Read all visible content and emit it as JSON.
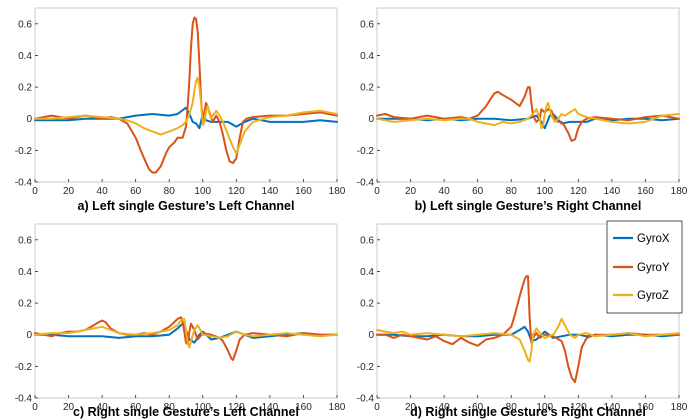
{
  "colors": {
    "GyroX": "#0072BD",
    "GyroY": "#D95319",
    "GyroZ": "#EDB120",
    "axis": "#262626",
    "box": "#bfbfbf"
  },
  "legend": {
    "entries": [
      "GyroX",
      "GyroY",
      "GyroZ"
    ],
    "placement": "right of panel d, top"
  },
  "chart_data": [
    {
      "type": "line",
      "title": "a) Left single Gesture’s Left Channel",
      "xlim": [
        0,
        180
      ],
      "ylim": [
        -0.4,
        0.7
      ],
      "xticks": [
        0,
        20,
        40,
        60,
        80,
        100,
        120,
        140,
        160,
        180
      ],
      "yticks": [
        -0.4,
        -0.2,
        0,
        0.2,
        0.4,
        0.6
      ],
      "ytick_labels": [
        "-0.4",
        "-0.2",
        "0",
        "0.2",
        "0.4",
        "0.6"
      ],
      "grid": false,
      "series": [
        {
          "name": "GyroX",
          "x": [
            0,
            10,
            20,
            30,
            40,
            50,
            60,
            70,
            80,
            85,
            90,
            92,
            94,
            96,
            98,
            100,
            102,
            105,
            110,
            115,
            120,
            125,
            130,
            140,
            150,
            160,
            170,
            180
          ],
          "y": [
            -0.01,
            -0.01,
            -0.01,
            0.0,
            0.0,
            0.0,
            0.02,
            0.03,
            0.02,
            0.03,
            0.07,
            0.03,
            -0.02,
            -0.03,
            -0.06,
            0.03,
            -0.01,
            -0.02,
            -0.02,
            -0.02,
            -0.05,
            -0.02,
            0.0,
            -0.02,
            -0.02,
            -0.02,
            -0.01,
            -0.02
          ]
        },
        {
          "name": "GyroY",
          "x": [
            0,
            10,
            20,
            30,
            40,
            45,
            50,
            55,
            60,
            63,
            65,
            68,
            70,
            72,
            75,
            78,
            80,
            83,
            85,
            88,
            90,
            91,
            92,
            93,
            94,
            95,
            96,
            97,
            98,
            99,
            100,
            101,
            102,
            104,
            106,
            108,
            110,
            112,
            114,
            116,
            118,
            120,
            122,
            124,
            126,
            130,
            140,
            150,
            160,
            170,
            180
          ],
          "y": [
            0.0,
            0.02,
            0.0,
            0.02,
            0.0,
            0.01,
            0.0,
            -0.03,
            -0.12,
            -0.2,
            -0.25,
            -0.32,
            -0.34,
            -0.34,
            -0.3,
            -0.22,
            -0.18,
            -0.15,
            -0.12,
            -0.12,
            -0.05,
            0.08,
            0.25,
            0.45,
            0.6,
            0.64,
            0.63,
            0.55,
            0.35,
            0.12,
            -0.02,
            0.05,
            0.1,
            0.04,
            -0.02,
            0.02,
            -0.02,
            -0.1,
            -0.2,
            -0.27,
            -0.28,
            -0.25,
            -0.12,
            -0.02,
            0.0,
            0.01,
            0.02,
            0.02,
            0.03,
            0.04,
            0.02
          ]
        },
        {
          "name": "GyroZ",
          "x": [
            0,
            10,
            20,
            30,
            40,
            50,
            55,
            60,
            65,
            70,
            75,
            80,
            85,
            88,
            90,
            92,
            94,
            95,
            96,
            97,
            98,
            99,
            100,
            101,
            102,
            103,
            104,
            105,
            106,
            108,
            110,
            112,
            115,
            118,
            120,
            125,
            130,
            140,
            150,
            160,
            170,
            180
          ],
          "y": [
            0.0,
            0.0,
            0.01,
            0.02,
            0.01,
            0.0,
            -0.01,
            -0.03,
            -0.06,
            -0.08,
            -0.1,
            -0.08,
            -0.06,
            -0.04,
            -0.02,
            0.03,
            0.1,
            0.18,
            0.24,
            0.26,
            0.2,
            0.1,
            -0.04,
            -0.02,
            0.05,
            0.08,
            0.03,
            0.0,
            0.02,
            0.05,
            0.02,
            -0.02,
            -0.1,
            -0.18,
            -0.22,
            -0.08,
            -0.02,
            0.01,
            0.02,
            0.04,
            0.05,
            0.03
          ]
        }
      ]
    },
    {
      "type": "line",
      "title": "b) Left single Gesture’s Right Channel",
      "xlim": [
        0,
        180
      ],
      "ylim": [
        -0.4,
        0.7
      ],
      "xticks": [
        0,
        20,
        40,
        60,
        80,
        100,
        120,
        140,
        160,
        180
      ],
      "yticks": [
        -0.4,
        -0.2,
        0,
        0.2,
        0.4,
        0.6
      ],
      "ytick_labels": [
        "-0.4",
        "-0.2",
        "0",
        "0.2",
        "0.4",
        "0.6"
      ],
      "grid": false,
      "series": [
        {
          "name": "GyroX",
          "x": [
            0,
            10,
            20,
            30,
            40,
            50,
            60,
            70,
            80,
            90,
            95,
            98,
            100,
            103,
            105,
            110,
            115,
            120,
            125,
            130,
            140,
            150,
            160,
            170,
            180
          ],
          "y": [
            0.0,
            0.0,
            0.0,
            -0.01,
            0.0,
            -0.01,
            0.0,
            0.0,
            -0.01,
            0.0,
            0.02,
            -0.02,
            -0.06,
            0.02,
            0.03,
            -0.03,
            -0.02,
            -0.02,
            -0.02,
            0.0,
            -0.01,
            0.0,
            0.0,
            -0.01,
            0.0
          ]
        },
        {
          "name": "GyroY",
          "x": [
            0,
            5,
            10,
            20,
            30,
            40,
            50,
            55,
            60,
            65,
            68,
            70,
            72,
            75,
            80,
            85,
            88,
            90,
            91,
            92,
            93,
            95,
            97,
            98,
            100,
            102,
            104,
            106,
            108,
            110,
            112,
            114,
            116,
            118,
            120,
            122,
            125,
            130,
            140,
            150,
            160,
            170,
            180
          ],
          "y": [
            0.02,
            0.03,
            0.01,
            0.0,
            0.02,
            0.0,
            0.01,
            0.0,
            0.02,
            0.08,
            0.13,
            0.16,
            0.17,
            0.15,
            0.12,
            0.08,
            0.14,
            0.2,
            0.2,
            0.1,
            0.02,
            -0.02,
            0.0,
            0.06,
            0.04,
            0.06,
            0.05,
            0.0,
            -0.02,
            -0.02,
            -0.05,
            -0.09,
            -0.14,
            -0.13,
            -0.06,
            -0.02,
            0.0,
            0.01,
            0.0,
            -0.01,
            0.01,
            0.02,
            0.0
          ]
        },
        {
          "name": "GyroZ",
          "x": [
            0,
            10,
            20,
            30,
            40,
            50,
            55,
            60,
            65,
            70,
            75,
            80,
            85,
            90,
            93,
            95,
            97,
            98,
            99,
            100,
            101,
            102,
            104,
            106,
            108,
            110,
            112,
            115,
            118,
            120,
            125,
            130,
            140,
            150,
            160,
            170,
            180
          ],
          "y": [
            0.0,
            -0.02,
            -0.01,
            0.0,
            -0.01,
            0.0,
            0.0,
            -0.02,
            -0.03,
            -0.04,
            -0.02,
            -0.03,
            -0.02,
            0.0,
            0.03,
            0.06,
            0.0,
            -0.06,
            -0.04,
            0.03,
            0.08,
            0.1,
            0.02,
            -0.02,
            0.0,
            0.03,
            0.02,
            0.04,
            0.06,
            0.03,
            0.01,
            0.0,
            -0.02,
            -0.03,
            -0.02,
            0.02,
            0.03
          ]
        }
      ]
    },
    {
      "type": "line",
      "title": "c) Right single Gesture’s Left Channel",
      "xlim": [
        0,
        180
      ],
      "ylim": [
        -0.4,
        0.7
      ],
      "xticks": [
        0,
        20,
        40,
        60,
        80,
        100,
        120,
        140,
        160,
        180
      ],
      "yticks": [
        -0.4,
        -0.2,
        0,
        0.2,
        0.4,
        0.6
      ],
      "ytick_labels": [
        "-0.4",
        "-0.2",
        "0",
        "0.2",
        "0.4",
        "0.6"
      ],
      "grid": false,
      "series": [
        {
          "name": "GyroX",
          "x": [
            0,
            10,
            20,
            30,
            40,
            50,
            60,
            70,
            80,
            85,
            88,
            90,
            92,
            95,
            98,
            100,
            105,
            110,
            115,
            120,
            125,
            130,
            140,
            150,
            160,
            170,
            180
          ],
          "y": [
            0.0,
            0.0,
            -0.01,
            -0.01,
            -0.01,
            -0.02,
            -0.01,
            -0.01,
            0.0,
            0.04,
            0.07,
            0.03,
            -0.03,
            -0.05,
            0.0,
            0.02,
            -0.03,
            -0.02,
            0.0,
            0.02,
            0.0,
            -0.02,
            -0.01,
            0.0,
            0.01,
            0.0,
            0.0
          ]
        },
        {
          "name": "GyroY",
          "x": [
            0,
            5,
            10,
            15,
            20,
            25,
            30,
            35,
            38,
            40,
            42,
            45,
            50,
            55,
            60,
            65,
            70,
            75,
            80,
            83,
            85,
            87,
            88,
            89,
            90,
            91,
            92,
            93,
            95,
            97,
            100,
            105,
            110,
            112,
            115,
            117,
            118,
            120,
            122,
            125,
            130,
            140,
            150,
            160,
            170,
            180
          ],
          "y": [
            0.01,
            0.0,
            -0.01,
            0.01,
            0.02,
            0.02,
            0.03,
            0.06,
            0.08,
            0.09,
            0.08,
            0.04,
            0.01,
            0.0,
            0.0,
            0.01,
            0.0,
            0.02,
            0.05,
            0.08,
            0.1,
            0.11,
            0.08,
            0.02,
            -0.05,
            -0.06,
            0.02,
            0.07,
            0.03,
            -0.03,
            0.01,
            0.0,
            -0.02,
            -0.04,
            -0.1,
            -0.15,
            -0.16,
            -0.1,
            -0.03,
            0.0,
            0.01,
            0.0,
            -0.01,
            0.01,
            0.0,
            0.0
          ]
        },
        {
          "name": "GyroZ",
          "x": [
            0,
            10,
            20,
            25,
            30,
            35,
            40,
            45,
            50,
            60,
            70,
            75,
            80,
            85,
            87,
            89,
            90,
            91,
            92,
            93,
            95,
            97,
            100,
            105,
            110,
            115,
            120,
            125,
            130,
            140,
            150,
            160,
            170,
            180
          ],
          "y": [
            0.0,
            0.01,
            0.01,
            0.02,
            0.03,
            0.04,
            0.05,
            0.03,
            0.01,
            0.0,
            0.01,
            0.02,
            0.03,
            0.06,
            0.09,
            0.1,
            0.03,
            -0.05,
            -0.08,
            -0.04,
            0.03,
            0.06,
            0.0,
            -0.01,
            -0.02,
            -0.01,
            0.02,
            0.0,
            -0.01,
            0.0,
            0.01,
            0.0,
            -0.01,
            0.0
          ]
        }
      ]
    },
    {
      "type": "line",
      "title": "d) Right single Gesture’s Right Channel",
      "xlim": [
        0,
        180
      ],
      "ylim": [
        -0.4,
        0.7
      ],
      "xticks": [
        0,
        20,
        40,
        60,
        80,
        100,
        120,
        140,
        160,
        180
      ],
      "yticks": [
        -0.4,
        -0.2,
        0,
        0.2,
        0.4,
        0.6
      ],
      "ytick_labels": [
        "-0.4",
        "-0.2",
        "0",
        "0.2",
        "0.4",
        "0.6"
      ],
      "grid": false,
      "series": [
        {
          "name": "GyroX",
          "x": [
            0,
            10,
            20,
            30,
            40,
            50,
            60,
            70,
            80,
            85,
            88,
            90,
            92,
            95,
            98,
            100,
            105,
            110,
            115,
            120,
            125,
            130,
            140,
            150,
            160,
            170,
            180
          ],
          "y": [
            0.0,
            0.0,
            -0.01,
            -0.01,
            0.0,
            -0.01,
            -0.01,
            0.0,
            0.0,
            0.03,
            0.05,
            0.02,
            -0.04,
            -0.03,
            0.0,
            0.02,
            -0.02,
            -0.01,
            0.0,
            0.0,
            -0.01,
            0.0,
            -0.01,
            0.0,
            0.0,
            -0.01,
            0.0
          ]
        },
        {
          "name": "GyroY",
          "x": [
            0,
            5,
            10,
            15,
            20,
            25,
            30,
            35,
            40,
            45,
            50,
            55,
            60,
            65,
            70,
            75,
            80,
            82,
            84,
            86,
            88,
            89,
            90,
            91,
            92,
            93,
            95,
            97,
            100,
            105,
            110,
            112,
            114,
            116,
            118,
            120,
            122,
            125,
            130,
            140,
            150,
            160,
            170,
            180
          ],
          "y": [
            0.0,
            0.0,
            -0.02,
            0.0,
            -0.01,
            -0.02,
            -0.03,
            -0.01,
            -0.04,
            -0.06,
            -0.02,
            -0.05,
            -0.07,
            -0.03,
            -0.02,
            0.0,
            0.05,
            0.12,
            0.2,
            0.28,
            0.35,
            0.37,
            0.37,
            0.1,
            -0.05,
            -0.02,
            0.01,
            -0.02,
            0.0,
            -0.01,
            -0.04,
            -0.1,
            -0.2,
            -0.27,
            -0.3,
            -0.2,
            -0.08,
            -0.02,
            0.0,
            0.0,
            0.01,
            0.0,
            0.0,
            0.0
          ]
        },
        {
          "name": "GyroZ",
          "x": [
            0,
            5,
            10,
            15,
            20,
            30,
            40,
            50,
            60,
            70,
            80,
            85,
            88,
            90,
            91,
            92,
            93,
            95,
            97,
            100,
            105,
            108,
            110,
            112,
            115,
            118,
            120,
            125,
            130,
            140,
            150,
            160,
            170,
            180
          ],
          "y": [
            0.03,
            0.02,
            0.01,
            0.02,
            0.0,
            0.01,
            0.0,
            -0.01,
            0.0,
            0.01,
            0.0,
            -0.03,
            -0.1,
            -0.16,
            -0.17,
            -0.1,
            0.0,
            0.04,
            0.01,
            -0.02,
            0.0,
            0.05,
            0.1,
            0.06,
            0.0,
            -0.02,
            0.0,
            0.01,
            -0.01,
            0.0,
            0.01,
            -0.01,
            0.0,
            0.01
          ]
        }
      ]
    }
  ]
}
